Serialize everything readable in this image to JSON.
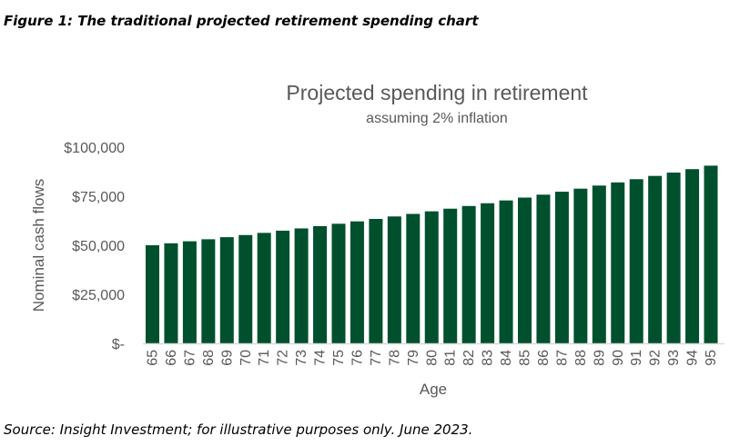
{
  "figure_caption": "Figure 1: The traditional projected retirement spending chart",
  "source_note": "Source: Insight Investment; for illustrative purposes only. June 2023.",
  "chart_data": {
    "type": "bar",
    "title": "Projected spending in retirement",
    "subtitle": "assuming 2% inflation",
    "xlabel": "Age",
    "ylabel": "Nominal cash flows",
    "ylim": [
      0,
      100000
    ],
    "yticks": [
      0,
      25000,
      50000,
      75000,
      100000
    ],
    "ytick_labels": [
      "$-",
      "$25,000",
      "$50,000",
      "$75,000",
      "$100,000"
    ],
    "grid": false,
    "bar_color": "#00502E",
    "categories": [
      "65",
      "66",
      "67",
      "68",
      "69",
      "70",
      "71",
      "72",
      "73",
      "74",
      "75",
      "76",
      "77",
      "78",
      "79",
      "80",
      "81",
      "82",
      "83",
      "84",
      "85",
      "86",
      "87",
      "88",
      "89",
      "90",
      "91",
      "92",
      "93",
      "94",
      "95"
    ],
    "values": [
      50000,
      51000,
      52020,
      53060,
      54122,
      55204,
      56308,
      57434,
      58583,
      59755,
      60950,
      62169,
      63412,
      64680,
      65974,
      67293,
      68639,
      70012,
      71412,
      72841,
      74297,
      75783,
      77299,
      78845,
      80422,
      82030,
      83671,
      85344,
      87051,
      88792,
      90568
    ]
  }
}
